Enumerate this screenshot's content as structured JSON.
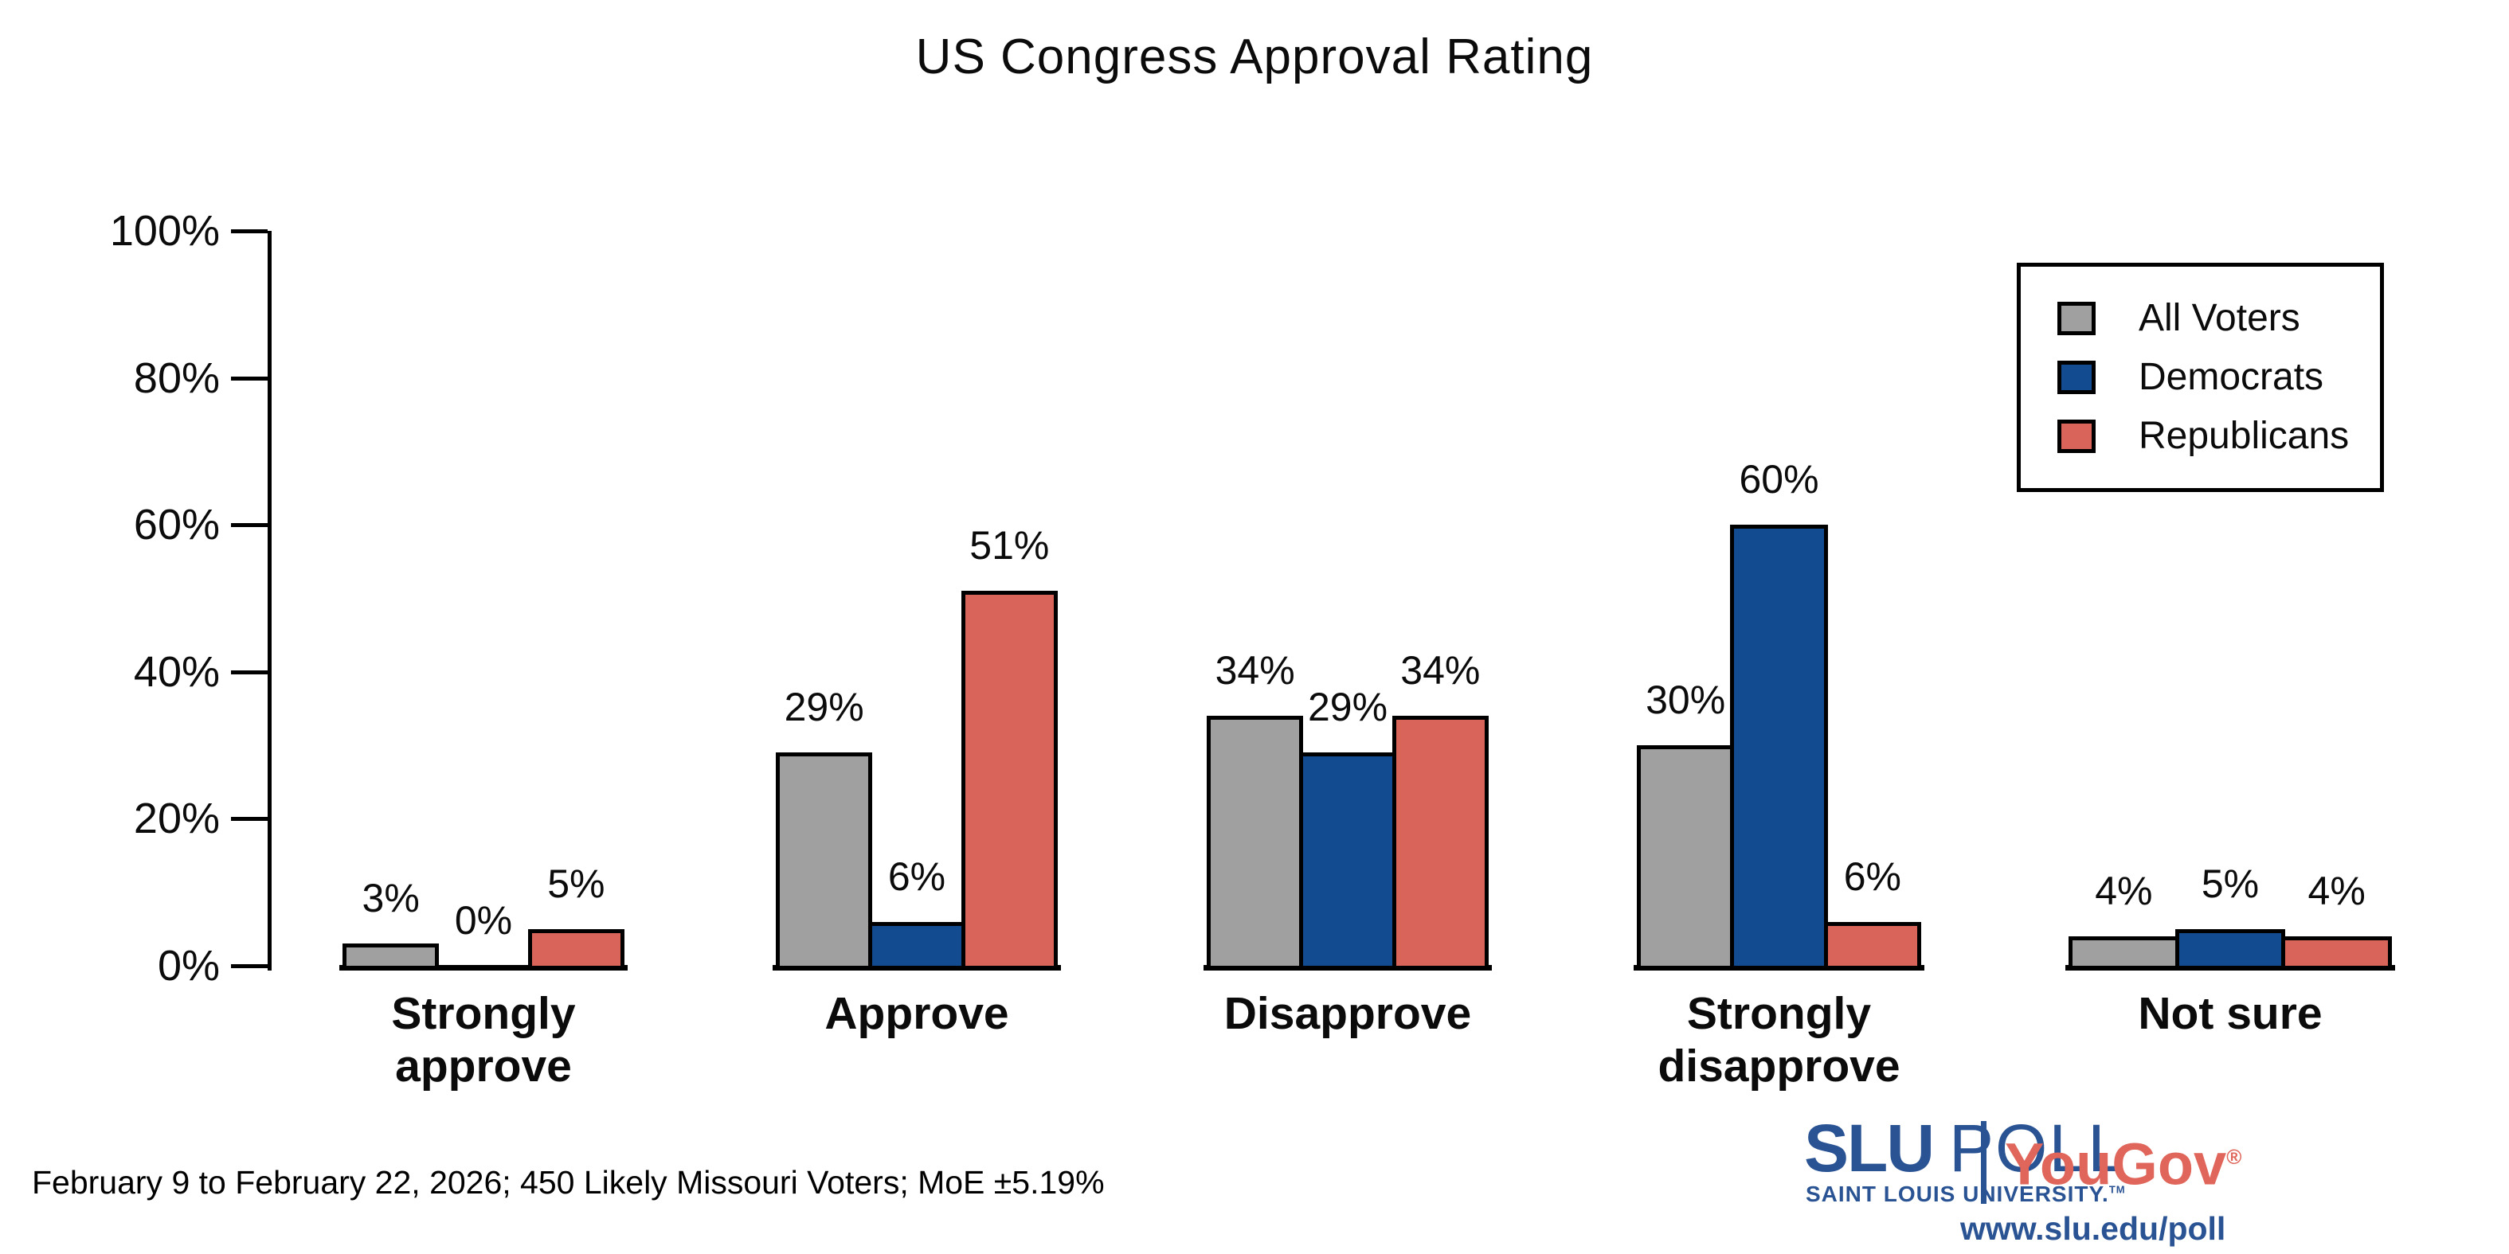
{
  "chart_data": {
    "type": "bar",
    "title": "US Congress Approval Rating",
    "categories": [
      "Strongly approve",
      "Approve",
      "Disapprove",
      "Strongly disapprove",
      "Not sure"
    ],
    "series": [
      {
        "name": "All Voters",
        "color": "#a0a0a0",
        "values": [
          3,
          29,
          34,
          30,
          4
        ]
      },
      {
        "name": "Democrats",
        "color": "#124b8f",
        "values": [
          0,
          6,
          29,
          60,
          5
        ]
      },
      {
        "name": "Republicans",
        "color": "#d9655a",
        "values": [
          5,
          51,
          34,
          6,
          4
        ]
      }
    ],
    "xlabel": "",
    "ylabel": "",
    "y_ticks": [
      "0%",
      "20%",
      "40%",
      "60%",
      "80%",
      "100%"
    ],
    "ylim": [
      0,
      100
    ],
    "grid": false,
    "legend_position": "top-right",
    "value_suffix": "%",
    "axis_color": "#000000"
  },
  "footer": "February 9 to February 22, 2026; 450 Likely Missouri Voters; MoE ±5.19%",
  "branding": {
    "slu": "SLU",
    "poll": "POLL",
    "slu_sub": "SAINT LOUIS UNIVERSITY.",
    "slu_tm": "TM",
    "yougov": "YouGov",
    "yougov_reg": "®",
    "url": "www.slu.edu/poll",
    "slu_blue": "#2a5394",
    "yougov_red": "#e0655a"
  }
}
